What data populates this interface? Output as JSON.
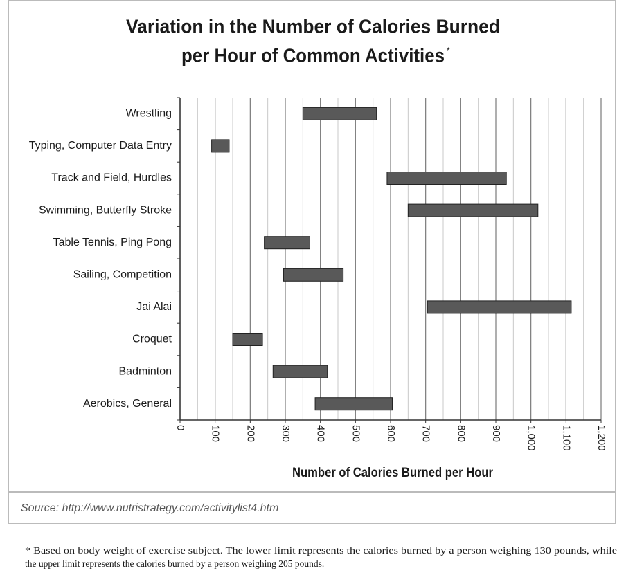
{
  "chart_data": {
    "type": "range-bar",
    "title": [
      "Variation in the Number of Calories Burned",
      "per Hour of Common Activities"
    ],
    "title_mark": "*",
    "categories": [
      "Wrestling",
      "Typing, Computer Data Entry",
      "Track and Field, Hurdles",
      "Swimming, Butterfly Stroke",
      "Table Tennis, Ping Pong",
      "Sailing, Competition",
      "Jai Alai",
      "Croquet",
      "Badminton",
      "Aerobics, General"
    ],
    "starts": [
      350,
      90,
      590,
      650,
      240,
      295,
      705,
      150,
      265,
      385
    ],
    "ends": [
      560,
      140,
      930,
      1020,
      370,
      465,
      1115,
      235,
      420,
      605
    ],
    "color": "#595959",
    "xlim": [
      0,
      1200
    ],
    "xticks": [
      0,
      100,
      200,
      300,
      400,
      500,
      600,
      700,
      800,
      900,
      {
        "value": 1000,
        "label": "1,000"
      },
      {
        "value": 1100,
        "label": "1,100"
      },
      {
        "value": 1200,
        "label": "1,200"
      }
    ],
    "xlabel": "Number of Calories Burned per Hour",
    "grid": true,
    "minor_grid": true
  },
  "source": "Source: http://www.nutristrategy.com/activitylist4.htm",
  "footnote": [
    "* Based on body weight of exercise subject. The lower limit represents the calories burned by a person weighing 130 pounds, while",
    "the upper limit represents the calories burned by a person weighing 205 pounds."
  ]
}
